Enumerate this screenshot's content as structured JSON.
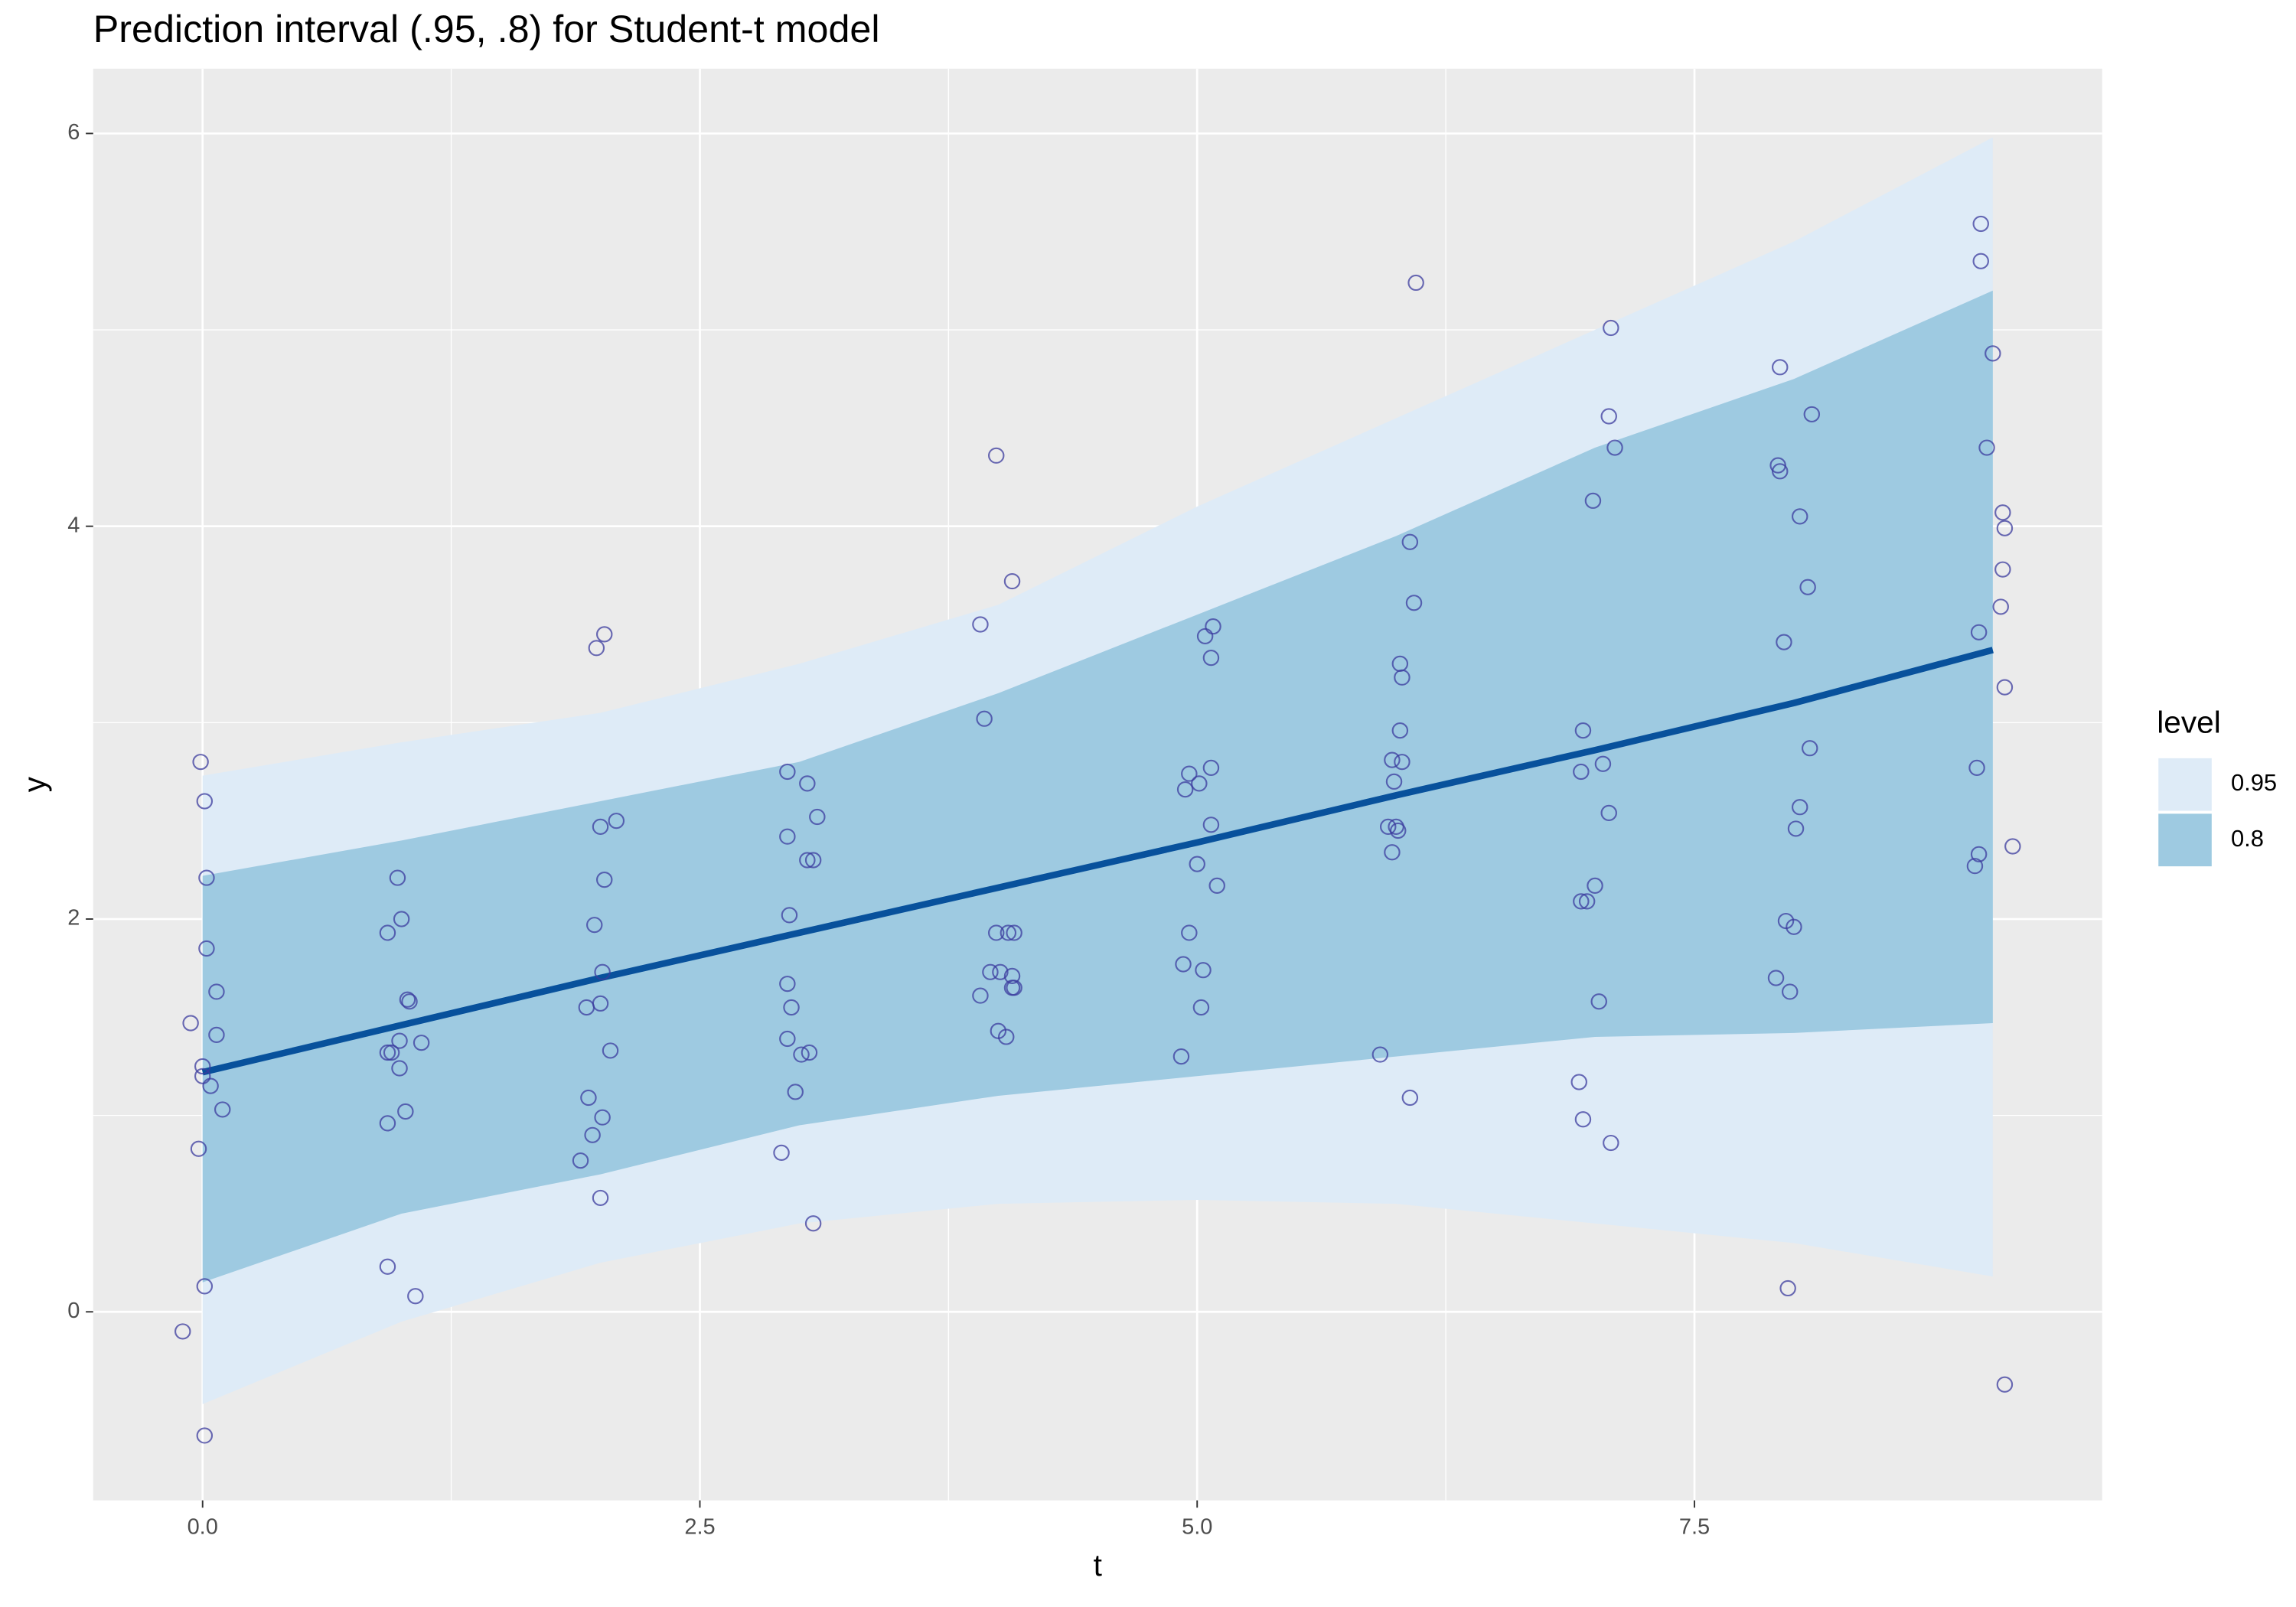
{
  "chart_data": {
    "type": "ribbon",
    "title": "Prediction interval (.95, .8) for Student-t model",
    "x_label": "t",
    "y_label": "y",
    "legend_title": "level",
    "legend_position": "right",
    "grid": true,
    "background": "#ebebeb",
    "xlim": [
      -0.55,
      9.55
    ],
    "ylim": [
      -0.96,
      6.33
    ],
    "xticks": [
      {
        "value": 0,
        "label": "0.0"
      },
      2.5,
      {
        "value": 5,
        "label": "5.0"
      },
      7.5
    ],
    "yticks": [
      0,
      2,
      4,
      6
    ],
    "x": [
      0,
      1,
      2,
      3,
      4,
      5,
      6,
      7,
      8,
      9
    ],
    "bands": [
      {
        "name": "0.95",
        "color": "#deebf7",
        "lower": [
          -0.47,
          -0.05,
          0.25,
          0.45,
          0.55,
          0.57,
          0.55,
          0.45,
          0.35,
          0.18
        ],
        "upper": [
          2.73,
          2.9,
          3.05,
          3.3,
          3.6,
          4.1,
          4.55,
          5.0,
          5.45,
          5.98
        ]
      },
      {
        "name": "0.8",
        "color": "#9ecae1",
        "lower": [
          0.15,
          0.5,
          0.7,
          0.95,
          1.1,
          1.2,
          1.3,
          1.4,
          1.42,
          1.47
        ],
        "upper": [
          2.22,
          2.4,
          2.6,
          2.8,
          3.15,
          3.55,
          3.95,
          4.4,
          4.75,
          5.2
        ]
      }
    ],
    "line": {
      "color": "#08519c",
      "values": [
        1.22,
        1.46,
        1.7,
        1.93,
        2.16,
        2.39,
        2.63,
        2.86,
        3.1,
        3.37
      ]
    },
    "points": {
      "color": "#3b3b9e",
      "x": [
        -0.1,
        -0.06,
        -0.01,
        0.01,
        0.02,
        0.02,
        0.07,
        0.07,
        0,
        0,
        0.04,
        0.1,
        -0.02,
        0.01,
        0.01,
        0.93,
        0.98,
        1.0,
        1.03,
        1.04,
        0.99,
        1.1,
        0.93,
        0.95,
        0.99,
        1.02,
        0.93,
        0.93,
        1.07,
        1.98,
        2.02,
        2.0,
        2.08,
        2.02,
        1.97,
        2.01,
        2.0,
        1.93,
        2.05,
        1.94,
        1.96,
        2.01,
        1.9,
        2.0,
        2.94,
        3.04,
        3.09,
        2.94,
        3.04,
        3.07,
        2.95,
        2.94,
        2.96,
        2.94,
        3.01,
        3.05,
        2.98,
        2.91,
        3.07,
        3.99,
        4.07,
        3.91,
        3.93,
        3.99,
        4.05,
        4.08,
        3.96,
        4.01,
        4.07,
        4.07,
        4.08,
        3.91,
        4.0,
        4.04,
        5.04,
        5.08,
        5.07,
        5.07,
        4.96,
        4.94,
        5.01,
        5.07,
        5.0,
        5.1,
        4.96,
        4.93,
        5.03,
        5.02,
        4.92,
        6.1,
        6.07,
        6.09,
        6.02,
        6.03,
        6.02,
        5.98,
        6.03,
        5.99,
        5.96,
        6.0,
        6.01,
        5.98,
        5.92,
        6.07,
        7.08,
        7.07,
        7.1,
        6.99,
        6.94,
        6.93,
        7.04,
        7.07,
        7.0,
        6.93,
        6.96,
        7.02,
        6.92,
        6.94,
        7.08,
        7.93,
        8.09,
        7.92,
        7.93,
        8.03,
        8.07,
        7.95,
        8.08,
        8.03,
        8.01,
        7.96,
        8.0,
        7.91,
        7.98,
        7.97,
        8.94,
        8.94,
        9.0,
        8.97,
        9.05,
        9.06,
        9.05,
        9.04,
        8.93,
        9.06,
        8.92,
        9.1,
        8.93,
        8.91,
        9.06
      ],
      "y": [
        -0.1,
        1.47,
        2.8,
        2.6,
        2.21,
        1.85,
        1.63,
        1.41,
        1.25,
        1.2,
        1.15,
        1.03,
        0.83,
        0.13,
        -0.63,
        1.93,
        2.21,
        2.0,
        1.59,
        1.58,
        1.38,
        1.37,
        1.32,
        1.32,
        1.24,
        1.02,
        0.96,
        0.23,
        0.08,
        3.38,
        3.45,
        2.47,
        2.5,
        2.2,
        1.97,
        1.73,
        1.57,
        1.55,
        1.33,
        1.09,
        0.9,
        0.99,
        0.77,
        0.58,
        2.75,
        2.69,
        2.52,
        2.42,
        2.3,
        2.3,
        2.02,
        1.67,
        1.55,
        1.39,
        1.31,
        1.32,
        1.12,
        0.81,
        0.45,
        4.36,
        3.72,
        3.5,
        3.02,
        1.93,
        1.93,
        1.93,
        1.73,
        1.73,
        1.71,
        1.65,
        1.65,
        1.61,
        1.43,
        1.4,
        3.44,
        3.49,
        3.33,
        2.77,
        2.74,
        2.66,
        2.69,
        2.48,
        2.28,
        2.17,
        1.93,
        1.77,
        1.74,
        1.55,
        1.3,
        5.24,
        3.92,
        3.61,
        3.3,
        3.23,
        2.96,
        2.81,
        2.8,
        2.7,
        2.47,
        2.47,
        2.45,
        2.34,
        1.31,
        1.09,
        5.01,
        4.56,
        4.4,
        4.13,
        2.96,
        2.75,
        2.79,
        2.54,
        2.17,
        2.09,
        2.09,
        1.58,
        1.17,
        0.98,
        0.86,
        4.81,
        4.57,
        4.31,
        4.28,
        4.05,
        3.69,
        3.41,
        2.87,
        2.57,
        2.46,
        1.99,
        1.96,
        1.7,
        1.63,
        0.12,
        5.54,
        5.35,
        4.88,
        4.4,
        4.07,
        3.99,
        3.78,
        3.59,
        3.46,
        3.18,
        2.77,
        2.37,
        2.33,
        2.27,
        -0.37
      ]
    }
  }
}
